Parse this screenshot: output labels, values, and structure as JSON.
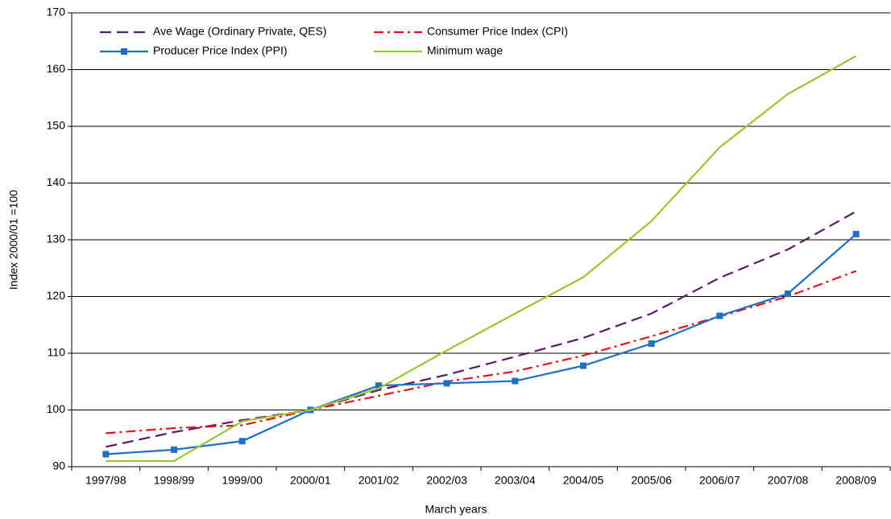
{
  "chart_data": {
    "type": "line",
    "xlabel": "March years",
    "ylabel": "Index 2000/01 =100",
    "categories": [
      "1997/98",
      "1998/99",
      "1999/00",
      "2000/01",
      "2001/02",
      "2002/03",
      "2003/04",
      "2004/05",
      "2005/06",
      "2006/07",
      "2007/08",
      "2008/09"
    ],
    "series": [
      {
        "name": "Ave Wage (Ordinary Private, QES)",
        "color": "#5a1a6a",
        "style": "dashed",
        "values": [
          93.5,
          96.1,
          98.2,
          100,
          103.5,
          106.2,
          109.4,
          112.7,
          117,
          123.3,
          128.3,
          135
        ]
      },
      {
        "name": "Consumer Price Index (CPI)",
        "color": "#e8101a",
        "style": "dashdot",
        "values": [
          95.9,
          96.8,
          97.3,
          100,
          102.5,
          105,
          106.8,
          109.6,
          113,
          116.5,
          120,
          124.5
        ]
      },
      {
        "name": "Producer Price Index (PPI)",
        "color": "#1f6fc5",
        "style": "solid",
        "marker": "square",
        "values": [
          92.2,
          93,
          94.5,
          100,
          104.3,
          104.7,
          105.1,
          107.8,
          111.7,
          116.6,
          120.5,
          131
        ]
      },
      {
        "name": "Minimum wage",
        "color": "#99c631",
        "style": "solid",
        "values": [
          91,
          91,
          98,
          100,
          103.8,
          110.5,
          117,
          123.4,
          133.3,
          146.3,
          155.7,
          162.4
        ]
      }
    ],
    "ylim": [
      90,
      170
    ],
    "yticks": [
      90,
      100,
      110,
      120,
      130,
      140,
      150,
      160,
      170
    ],
    "grid": true,
    "legend": "upper left"
  }
}
